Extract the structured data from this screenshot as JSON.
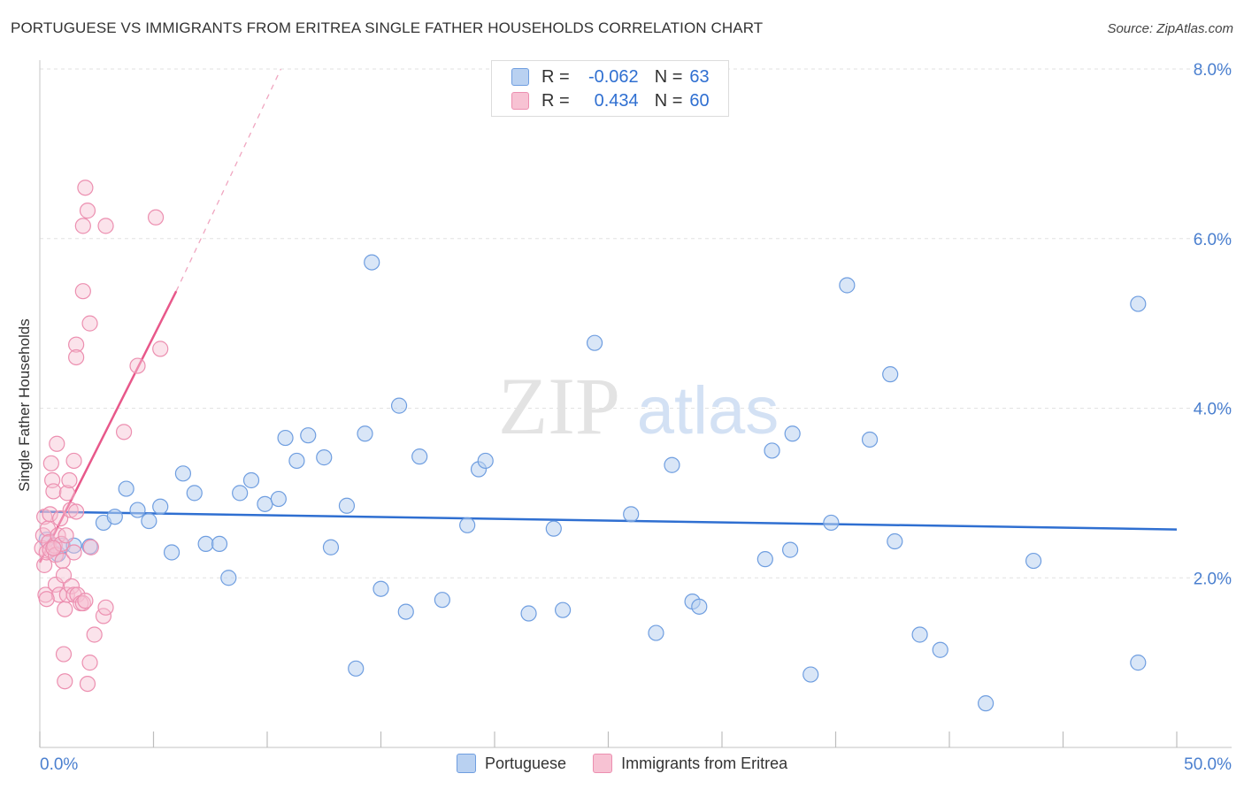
{
  "title": "PORTUGUESE VS IMMIGRANTS FROM ERITREA SINGLE FATHER HOUSEHOLDS CORRELATION CHART",
  "source": "Source: ZipAtlas.com",
  "watermark": {
    "zip": "ZIP",
    "atlas": "atlas"
  },
  "colors": {
    "blue": "#2f6fd1",
    "blue_fill": "#b9d1f1",
    "pink": "#e8588a",
    "pink_fill": "#f7c2d3",
    "tick_text": "#4a7fcf",
    "grid": "#e2e2e2"
  },
  "stats": {
    "row1": {
      "r_label": "R =",
      "r_value": "-0.062",
      "n_label": "N =",
      "n_value": "63"
    },
    "row2": {
      "r_label": "R =",
      "r_value": "0.434",
      "n_label": "N =",
      "n_value": "60"
    }
  },
  "legend": {
    "series1": "Portuguese",
    "series2": "Immigrants from Eritrea"
  },
  "chart_data": {
    "type": "scatter",
    "title": "PORTUGUESE VS IMMIGRANTS FROM ERITREA SINGLE FATHER HOUSEHOLDS CORRELATION CHART",
    "xlabel": "",
    "ylabel": "Single Father Households",
    "xlim": [
      0,
      50
    ],
    "ylim": [
      0,
      8
    ],
    "x_tick_labels": [
      "0.0%",
      "50.0%"
    ],
    "y_ticks": [
      2,
      4,
      6,
      8
    ],
    "y_tick_labels": [
      "2.0%",
      "4.0%",
      "6.0%",
      "8.0%"
    ],
    "grid": true,
    "series": [
      {
        "name": "Portuguese",
        "color": "#2f6fd1",
        "trend": {
          "x": [
            0,
            50
          ],
          "y": [
            2.78,
            2.57
          ]
        },
        "points": [
          [
            0.3,
            2.45
          ],
          [
            0.8,
            2.28
          ],
          [
            1.0,
            2.38
          ],
          [
            1.5,
            2.38
          ],
          [
            2.2,
            2.37
          ],
          [
            2.8,
            2.65
          ],
          [
            3.3,
            2.72
          ],
          [
            3.8,
            3.05
          ],
          [
            4.3,
            2.8
          ],
          [
            4.8,
            2.67
          ],
          [
            5.3,
            2.84
          ],
          [
            5.8,
            2.3
          ],
          [
            6.3,
            3.23
          ],
          [
            6.8,
            3.0
          ],
          [
            7.3,
            2.4
          ],
          [
            7.9,
            2.4
          ],
          [
            8.3,
            2.0
          ],
          [
            8.8,
            3.0
          ],
          [
            9.3,
            3.15
          ],
          [
            9.9,
            2.87
          ],
          [
            10.5,
            2.93
          ],
          [
            10.8,
            3.65
          ],
          [
            11.3,
            3.38
          ],
          [
            11.8,
            3.68
          ],
          [
            12.5,
            3.42
          ],
          [
            12.8,
            2.36
          ],
          [
            13.5,
            2.85
          ],
          [
            13.9,
            0.93
          ],
          [
            14.3,
            3.7
          ],
          [
            14.6,
            5.72
          ],
          [
            15.0,
            1.87
          ],
          [
            15.8,
            4.03
          ],
          [
            16.1,
            1.6
          ],
          [
            16.7,
            3.43
          ],
          [
            17.7,
            1.74
          ],
          [
            18.8,
            2.62
          ],
          [
            19.3,
            3.28
          ],
          [
            19.6,
            3.38
          ],
          [
            21.5,
            1.58
          ],
          [
            22.6,
            2.58
          ],
          [
            23.0,
            1.62
          ],
          [
            24.4,
            4.77
          ],
          [
            26.0,
            2.75
          ],
          [
            27.1,
            1.35
          ],
          [
            27.8,
            3.33
          ],
          [
            28.7,
            1.72
          ],
          [
            29.0,
            1.66
          ],
          [
            31.9,
            2.22
          ],
          [
            32.2,
            3.5
          ],
          [
            33.0,
            2.33
          ],
          [
            33.1,
            3.7
          ],
          [
            33.9,
            0.86
          ],
          [
            34.8,
            2.65
          ],
          [
            35.5,
            5.45
          ],
          [
            36.5,
            3.63
          ],
          [
            37.4,
            4.4
          ],
          [
            37.6,
            2.43
          ],
          [
            38.7,
            1.33
          ],
          [
            39.6,
            1.15
          ],
          [
            41.6,
            0.52
          ],
          [
            43.7,
            2.2
          ],
          [
            48.3,
            5.23
          ],
          [
            48.3,
            1.0
          ]
        ]
      },
      {
        "name": "Immigrants from Eritrea",
        "color": "#e8588a",
        "trend": {
          "x": [
            0,
            6.0
          ],
          "y": [
            2.18,
            5.38
          ]
        },
        "trend_dashed": {
          "x": [
            6.0,
            10.6
          ],
          "y": [
            5.38,
            8.0
          ]
        },
        "points": [
          [
            0.1,
            2.35
          ],
          [
            0.15,
            2.5
          ],
          [
            0.2,
            2.15
          ],
          [
            0.2,
            2.72
          ],
          [
            0.25,
            1.8
          ],
          [
            0.3,
            2.3
          ],
          [
            0.35,
            2.58
          ],
          [
            0.4,
            2.42
          ],
          [
            0.45,
            2.75
          ],
          [
            0.45,
            2.33
          ],
          [
            0.5,
            3.35
          ],
          [
            0.55,
            3.15
          ],
          [
            0.6,
            3.02
          ],
          [
            0.65,
            2.38
          ],
          [
            0.7,
            2.27
          ],
          [
            0.7,
            1.92
          ],
          [
            0.75,
            3.58
          ],
          [
            0.8,
            2.5
          ],
          [
            0.85,
            1.8
          ],
          [
            0.9,
            2.7
          ],
          [
            0.95,
            2.4
          ],
          [
            1.0,
            2.2
          ],
          [
            1.05,
            2.03
          ],
          [
            1.05,
            1.1
          ],
          [
            1.1,
            1.63
          ],
          [
            1.1,
            0.78
          ],
          [
            1.15,
            2.5
          ],
          [
            1.2,
            1.8
          ],
          [
            1.2,
            3.0
          ],
          [
            1.3,
            3.15
          ],
          [
            1.35,
            2.8
          ],
          [
            1.4,
            1.9
          ],
          [
            1.5,
            2.3
          ],
          [
            1.5,
            1.8
          ],
          [
            1.5,
            3.38
          ],
          [
            1.6,
            4.75
          ],
          [
            1.6,
            2.78
          ],
          [
            1.6,
            4.6
          ],
          [
            1.65,
            1.8
          ],
          [
            1.8,
            1.7
          ],
          [
            1.9,
            5.38
          ],
          [
            1.9,
            1.7
          ],
          [
            1.9,
            6.15
          ],
          [
            2.0,
            6.6
          ],
          [
            2.0,
            1.73
          ],
          [
            2.1,
            6.33
          ],
          [
            2.1,
            0.75
          ],
          [
            2.2,
            1.0
          ],
          [
            2.2,
            5.0
          ],
          [
            2.25,
            2.36
          ],
          [
            2.4,
            1.33
          ],
          [
            2.8,
            1.55
          ],
          [
            2.9,
            6.15
          ],
          [
            2.9,
            1.65
          ],
          [
            3.7,
            3.72
          ],
          [
            4.3,
            4.5
          ],
          [
            5.1,
            6.25
          ],
          [
            5.3,
            4.7
          ],
          [
            0.3,
            1.75
          ],
          [
            0.6,
            2.35
          ]
        ]
      }
    ]
  }
}
